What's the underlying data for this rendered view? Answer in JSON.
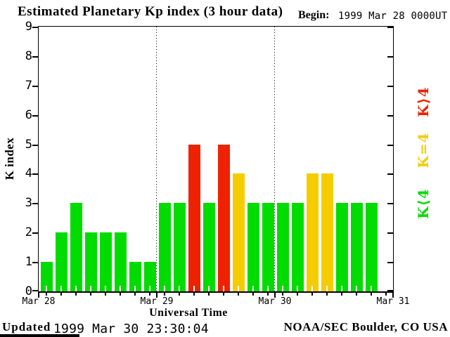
{
  "title": "Estimated Planetary Kp index (3 hour data)",
  "begin": {
    "label": "Begin:",
    "value": "1999 Mar 28 0000UT"
  },
  "chart_data": {
    "type": "bar",
    "title": "Estimated Planetary Kp index (3 hour data)",
    "xlabel": "Universal Time",
    "ylabel": "K index",
    "ylim": [
      0,
      9
    ],
    "yticks": [
      0,
      1,
      2,
      3,
      4,
      5,
      6,
      7,
      8,
      9
    ],
    "x_day_labels": [
      "Mar 28",
      "Mar 29",
      "Mar 30",
      "Mar 31"
    ],
    "hours_per_bar": 3,
    "bars_per_day": 8,
    "grid": "dotted vertical lines at day boundaries",
    "series": [
      {
        "day": "Mar 28",
        "values": [
          1,
          2,
          3,
          2,
          2,
          2,
          1,
          1
        ]
      },
      {
        "day": "Mar 29",
        "values": [
          3,
          3,
          5,
          3,
          5,
          4,
          3,
          3
        ]
      },
      {
        "day": "Mar 30",
        "values": [
          3,
          3,
          4,
          4,
          3,
          3,
          3
        ]
      }
    ],
    "colors": {
      "k_lt_4": "#00DC00",
      "k_eq_4": "#F5CC00",
      "k_gt_4": "#EE2200"
    },
    "color_rule": "K<4 green, K=4 yellow, K>4 red",
    "legend_position": "right"
  },
  "legend": [
    {
      "label": "K⟩4",
      "color": "#EE2200"
    },
    {
      "label": "K=4",
      "color": "#F5CC00"
    },
    {
      "label": "K⟨4",
      "color": "#00DC00"
    }
  ],
  "footer": {
    "updated_label": "Updated",
    "updated_value": "1999 Mar 30 23:30:04",
    "source": "NOAA/SEC Boulder, CO USA"
  }
}
